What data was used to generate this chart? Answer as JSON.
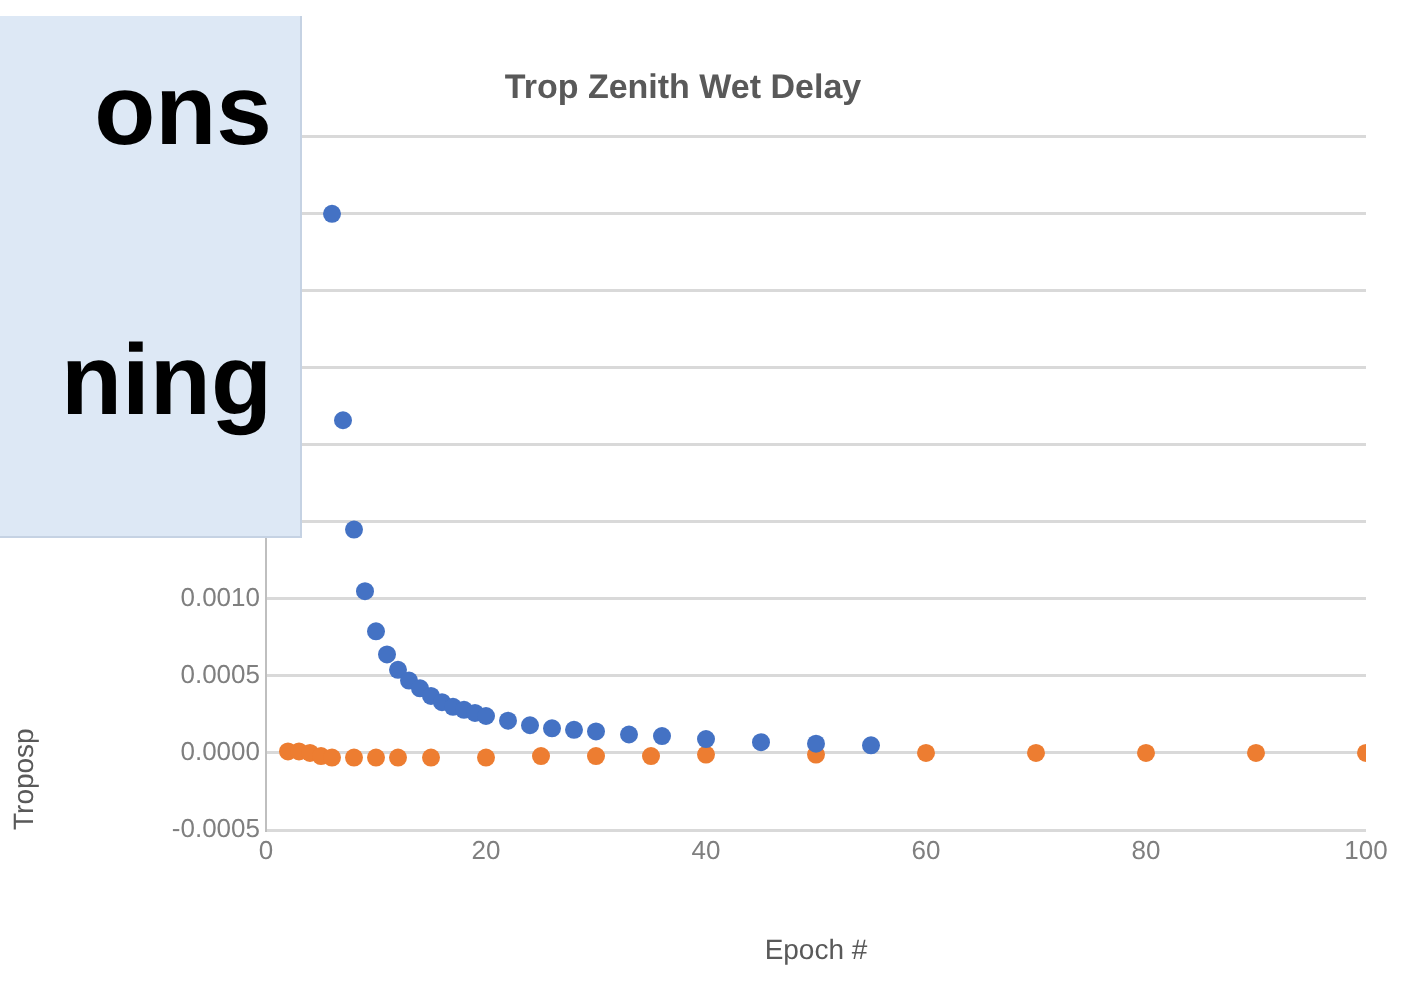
{
  "chart_data": {
    "type": "scatter",
    "title": "Trop Zenith Wet Delay",
    "xlabel": "Epoch #",
    "ylabel": "Troposp",
    "annotations": [
      "ons",
      "ning"
    ],
    "series": [
      {
        "type": "scatter",
        "color": "#4472c4",
        "x": [
          6,
          7,
          8,
          9,
          10,
          11,
          12,
          13,
          14,
          15,
          16,
          17,
          18,
          19,
          20,
          22,
          24,
          26,
          28,
          30,
          33,
          36,
          40,
          45,
          50,
          55
        ],
        "values": [
          0.0035,
          0.00216,
          0.00145,
          0.00105,
          0.00079,
          0.00064,
          0.00054,
          0.00047,
          0.00042,
          0.00037,
          0.00033,
          0.0003,
          0.00028,
          0.00026,
          0.00024,
          0.00021,
          0.00018,
          0.00016,
          0.00015,
          0.00014,
          0.00012,
          0.00011,
          9e-05,
          7e-05,
          6e-05,
          5e-05
        ]
      },
      {
        "type": "scatter",
        "color": "#ed7d31",
        "x": [
          2,
          3,
          4,
          5,
          6,
          8,
          10,
          12,
          15,
          20,
          25,
          30,
          35,
          40,
          50,
          60,
          70,
          80,
          90,
          100
        ],
        "values": [
          1e-05,
          1e-05,
          0,
          -2e-05,
          -3e-05,
          -3e-05,
          -3e-05,
          -3e-05,
          -3e-05,
          -3e-05,
          -2e-05,
          -2e-05,
          -2e-05,
          -1e-05,
          -1e-05,
          0,
          0,
          0,
          0,
          0
        ]
      }
    ],
    "xlim": [
      0,
      100
    ],
    "xticks": [
      0,
      20,
      40,
      60,
      80,
      100
    ],
    "ylim": [
      -0.0005,
      0.004
    ],
    "yticks": [
      {
        "value": -0.0005,
        "label": "-0.0005"
      },
      {
        "value": 0,
        "label": "0.0000"
      },
      {
        "value": 0.0005,
        "label": "0.0005"
      },
      {
        "value": 0.001,
        "label": "0.0010"
      },
      {
        "value": 0.0015,
        "label": null
      },
      {
        "value": 0.002,
        "label": null
      },
      {
        "value": 0.0025,
        "label": null
      },
      {
        "value": 0.003,
        "label": null
      },
      {
        "value": 0.0035,
        "label": null
      },
      {
        "value": 0.004,
        "label": null
      }
    ],
    "grid": "y",
    "marker": "circle"
  }
}
